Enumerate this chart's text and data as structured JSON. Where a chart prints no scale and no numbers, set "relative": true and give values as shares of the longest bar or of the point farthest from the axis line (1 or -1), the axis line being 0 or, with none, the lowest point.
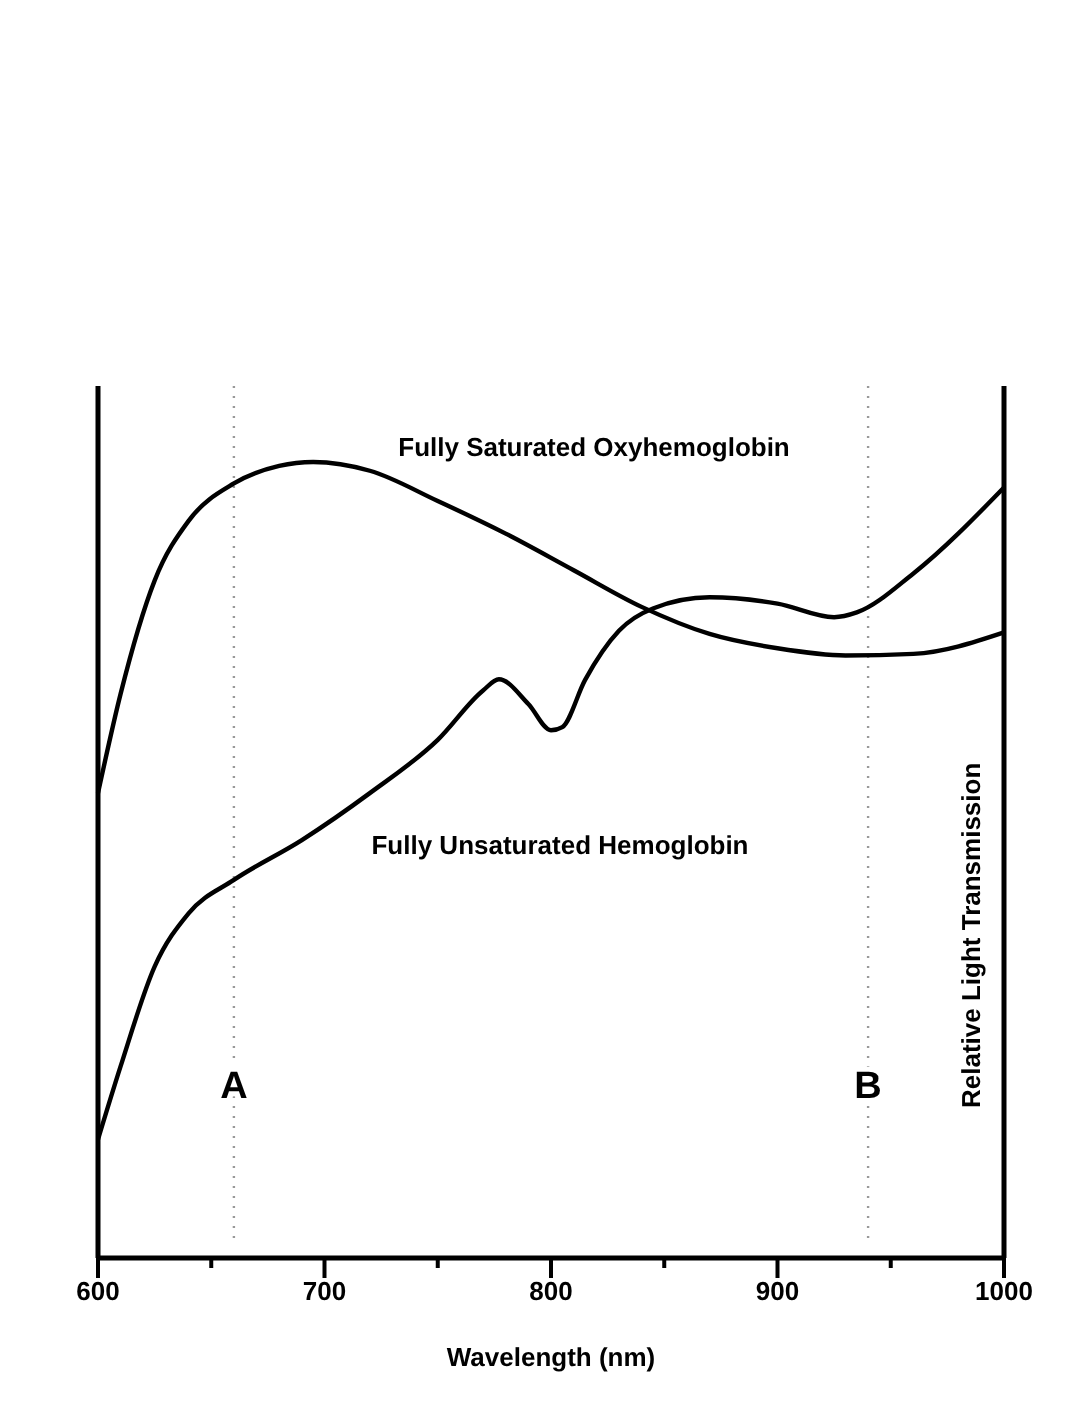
{
  "chart_data": {
    "type": "line",
    "relative": true,
    "xlabel": "Wavelength (nm)",
    "ylabel": "Relative Light Transmission",
    "xlim": [
      600,
      1000
    ],
    "xticks": [
      600,
      {
        "value": 650,
        "label": null
      },
      700,
      {
        "value": 750,
        "label": null
      },
      800,
      {
        "value": 850,
        "label": null
      },
      900,
      {
        "value": 950,
        "label": null
      },
      1000
    ],
    "grid": false,
    "marker": "none",
    "line_style": "solid",
    "ref_lines": [
      {
        "axis": "x",
        "value": 660,
        "label": "A",
        "color": "#999999",
        "line_style": "dotted"
      },
      {
        "axis": "x",
        "value": 940,
        "label": "B",
        "color": "#999999",
        "line_style": "dotted"
      }
    ],
    "series": [
      {
        "name": "Fully Saturated Oxyhemoglobin",
        "color": "#000000",
        "x": [
          600,
          610,
          625,
          640,
          660,
          680,
          695,
          720,
          750,
          780,
          810,
          840,
          870,
          900,
          930,
          960,
          1000
        ],
        "values": [
          0.584,
          0.709,
          0.851,
          0.926,
          0.973,
          0.995,
          1,
          0.989,
          0.951,
          0.91,
          0.864,
          0.818,
          0.784,
          0.766,
          0.757,
          0.759,
          0.786
        ]
      },
      {
        "name": "Fully Unsaturated Hemoglobin",
        "color": "#000000",
        "x": [
          600,
          610,
          625,
          640,
          660,
          690,
          720,
          750,
          770,
          777,
          790,
          800,
          805,
          815,
          830,
          845,
          870,
          900,
          925,
          935,
          960,
          1000
        ],
        "values": [
          0.149,
          0.241,
          0.366,
          0.433,
          0.475,
          0.525,
          0.584,
          0.651,
          0.713,
          0.727,
          0.696,
          0.663,
          0.667,
          0.726,
          0.788,
          0.816,
          0.83,
          0.822,
          0.805,
          0.811,
          0.86,
          0.968
        ]
      }
    ]
  }
}
